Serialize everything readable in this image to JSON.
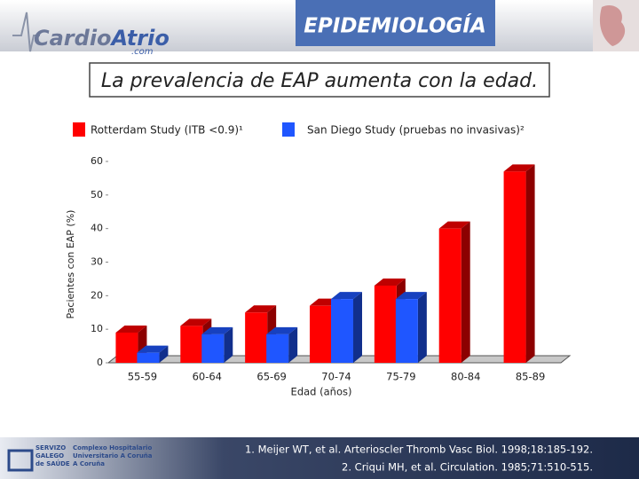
{
  "header": {
    "title": "EPIDEMIOLOGÍA",
    "logo_part1": "Cardio",
    "logo_part2": "Atrio",
    "logo_part3": ".com"
  },
  "subtitle": "La prevalencia de EAP aumenta con la edad.",
  "chart_data": {
    "type": "bar3d",
    "categories": [
      "55-59",
      "60-64",
      "65-69",
      "70-74",
      "75-79",
      "80-84",
      "85-89"
    ],
    "series": [
      {
        "name": "Rotterdam Study (ITB <0.9)¹",
        "color": "#ff0000",
        "values": [
          9,
          11,
          15,
          17,
          23,
          40,
          57
        ]
      },
      {
        "name": "San Diego Study (pruebas no invasivas)²",
        "color": "#1f56ff",
        "values": [
          3,
          8.5,
          8.5,
          19,
          19,
          null,
          null
        ]
      }
    ],
    "ylim": [
      0,
      60
    ],
    "yticks": [
      0,
      10,
      20,
      30,
      40,
      50,
      60
    ],
    "y_label": "Pacientes con EAP (%)",
    "x_label": "Edad (años)"
  },
  "footer": {
    "org1": "SERVIZO",
    "org2": "GALEGO",
    "org3": "de SAÚDE",
    "hosp1": "Complexo Hospitalario",
    "hosp2": "Universitario A Coruña",
    "hosp3": "A Coruña",
    "references": [
      "1. Meijer WT, et al. Arterioscler Thromb Vasc Biol. 1998;18:185-192.",
      "2. Criqui MH, et al. Circulation. 1985;71:510-515."
    ]
  }
}
